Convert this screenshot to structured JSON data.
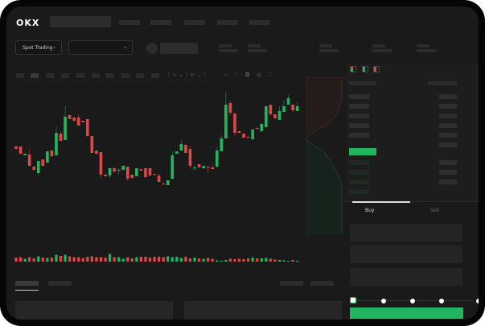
{
  "header": {
    "logo": "OKX"
  },
  "toolbar": {
    "market_select": "Spot Trading",
    "pair_select": ""
  },
  "chart_tools": [
    "line-icon",
    "ruler-icon",
    "camera-icon",
    "settings-icon",
    "fullscreen-icon"
  ],
  "order_book": {
    "view_icons": [
      "both-sides-icon",
      "bids-only-icon",
      "asks-only-icon"
    ]
  },
  "trade_form": {
    "tabs": [
      "Buy",
      "Sell"
    ],
    "active_tab": "Buy",
    "slider_percent": 0,
    "slider_steps": [
      0,
      25,
      50,
      75,
      100
    ]
  },
  "colors": {
    "up": "#22b55e",
    "down": "#e04848",
    "background": "#1a1a1a",
    "accent": "#23b45f"
  },
  "chart_data": {
    "type": "candlestick",
    "ohlc": [
      [
        68,
        69,
        65,
        65
      ],
      [
        68,
        68,
        59,
        59
      ],
      [
        57,
        59,
        57,
        59
      ],
      [
        58,
        64,
        44,
        44
      ],
      [
        43,
        44,
        38,
        39
      ],
      [
        35,
        50,
        32,
        50
      ],
      [
        52,
        52,
        44,
        44
      ],
      [
        48,
        62,
        48,
        62
      ],
      [
        63,
        63,
        55,
        56
      ],
      [
        57,
        93,
        57,
        85
      ],
      [
        84,
        87,
        75,
        75
      ],
      [
        76,
        118,
        76,
        105
      ],
      [
        107,
        108,
        102,
        102
      ],
      [
        104,
        105,
        99,
        100
      ],
      [
        104,
        108,
        94,
        94
      ],
      [
        100,
        100,
        98,
        98
      ],
      [
        102,
        103,
        80,
        81
      ],
      [
        81,
        81,
        60,
        60
      ],
      [
        63,
        63,
        58,
        59
      ],
      [
        61,
        61,
        28,
        33
      ],
      [
        33,
        34,
        31,
        31
      ],
      [
        32,
        42,
        29,
        41
      ],
      [
        41,
        43,
        35,
        37
      ],
      [
        38,
        41,
        33,
        39
      ],
      [
        39,
        45,
        39,
        44
      ],
      [
        43,
        43,
        25,
        28
      ],
      [
        33,
        33,
        27,
        29
      ],
      [
        31,
        42,
        31,
        41
      ],
      [
        40,
        40,
        38,
        38
      ],
      [
        41,
        41,
        29,
        30
      ],
      [
        41,
        41,
        32,
        32
      ],
      [
        34,
        34,
        33,
        33
      ],
      [
        32,
        34,
        23,
        24
      ],
      [
        22,
        23,
        21,
        21
      ],
      [
        20,
        26,
        20,
        26
      ],
      [
        28,
        62,
        27,
        57
      ],
      [
        59,
        62,
        59,
        62
      ],
      [
        63,
        76,
        63,
        71
      ],
      [
        70,
        71,
        60,
        60
      ],
      [
        65,
        69,
        40,
        44
      ],
      [
        41,
        44,
        38,
        42
      ],
      [
        46,
        46,
        42,
        42
      ],
      [
        41,
        44,
        41,
        44
      ],
      [
        43,
        43,
        35,
        42
      ],
      [
        42,
        47,
        40,
        40
      ],
      [
        43,
        67,
        42,
        63
      ],
      [
        62,
        82,
        62,
        78
      ],
      [
        78,
        135,
        78,
        120
      ],
      [
        122,
        124,
        107,
        110
      ],
      [
        109,
        109,
        80,
        85
      ],
      [
        87,
        88,
        85,
        85
      ],
      [
        84,
        84,
        79,
        79
      ],
      [
        80,
        81,
        79,
        79
      ],
      [
        77,
        90,
        77,
        89
      ],
      [
        91,
        92,
        90,
        90
      ],
      [
        87,
        97,
        87,
        96
      ],
      [
        92,
        118,
        92,
        118
      ],
      [
        120,
        120,
        106,
        108
      ],
      [
        108,
        108,
        103,
        103
      ],
      [
        101,
        118,
        101,
        112
      ],
      [
        111,
        125,
        111,
        118
      ],
      [
        120,
        132,
        120,
        128
      ],
      [
        120,
        120,
        110,
        113
      ],
      [
        112,
        123,
        112,
        118
      ]
    ],
    "volume": [
      10,
      11,
      7,
      11,
      8,
      13,
      10,
      9,
      10,
      17,
      14,
      17,
      13,
      11,
      11,
      9,
      12,
      13,
      11,
      11,
      10,
      19,
      11,
      11,
      7,
      11,
      8,
      11,
      12,
      12,
      10,
      12,
      12,
      11,
      13,
      11,
      12,
      9,
      12,
      8,
      10,
      8,
      7,
      9,
      7,
      3,
      2,
      4,
      7,
      6,
      7,
      6,
      8,
      10,
      8,
      8,
      9,
      7,
      5,
      4,
      3,
      2,
      4,
      2
    ]
  }
}
